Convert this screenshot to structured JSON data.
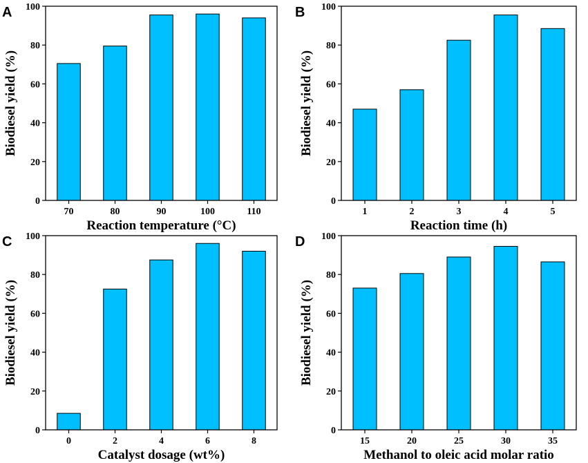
{
  "bar_color": "#00BFFF",
  "edge_color": "#000000",
  "chart_data": [
    {
      "panel": "A",
      "type": "bar",
      "categories": [
        "70",
        "80",
        "90",
        "100",
        "110"
      ],
      "values": [
        70.5,
        79.5,
        95.5,
        96.0,
        94.0
      ],
      "xlabel": "Reaction temperature (°C)",
      "ylabel": "Biodiesel yield (%)",
      "ylim": [
        0,
        100
      ],
      "yticks": [
        "0",
        "20",
        "40",
        "60",
        "80",
        "100"
      ]
    },
    {
      "panel": "B",
      "type": "bar",
      "categories": [
        "1",
        "2",
        "3",
        "4",
        "5"
      ],
      "values": [
        47.0,
        57.0,
        82.5,
        95.5,
        88.5
      ],
      "xlabel": "Reaction time (h)",
      "ylabel": "Biodiesel yield (%)",
      "ylim": [
        0,
        100
      ],
      "yticks": [
        "0",
        "20",
        "40",
        "60",
        "80",
        "100"
      ]
    },
    {
      "panel": "C",
      "type": "bar",
      "categories": [
        "0",
        "2",
        "4",
        "6",
        "8"
      ],
      "values": [
        8.5,
        72.5,
        87.5,
        96.0,
        92.0
      ],
      "xlabel": "Catalyst dosage (wt%)",
      "ylabel": "Biodiesel yield (%)",
      "ylim": [
        0,
        100
      ],
      "yticks": [
        "0",
        "20",
        "40",
        "60",
        "80",
        "100"
      ]
    },
    {
      "panel": "D",
      "type": "bar",
      "categories": [
        "15",
        "20",
        "25",
        "30",
        "35"
      ],
      "values": [
        73.0,
        80.5,
        89.0,
        94.5,
        86.5
      ],
      "xlabel": "Methanol to oleic acid molar ratio",
      "ylabel": "Biodiesel yield (%)",
      "ylim": [
        0,
        100
      ],
      "yticks": [
        "0",
        "20",
        "40",
        "60",
        "80",
        "100"
      ]
    }
  ]
}
